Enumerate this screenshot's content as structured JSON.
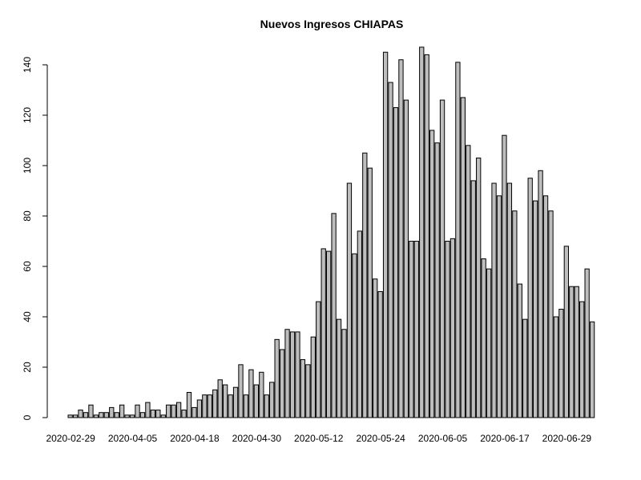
{
  "chart_data": {
    "type": "bar",
    "title": "Nuevos Ingresos CHIAPAS",
    "xlabel": "",
    "ylabel": "",
    "ylim": [
      0,
      150
    ],
    "y_ticks": [
      0,
      20,
      40,
      60,
      80,
      100,
      120,
      140
    ],
    "grid": false,
    "x_tick_labels": [
      {
        "label": "2020-02-29",
        "index": 0
      },
      {
        "label": "2020-04-05",
        "index": 12
      },
      {
        "label": "2020-04-18",
        "index": 24
      },
      {
        "label": "2020-04-30",
        "index": 36
      },
      {
        "label": "2020-05-12",
        "index": 48
      },
      {
        "label": "2020-05-24",
        "index": 60
      },
      {
        "label": "2020-06-05",
        "index": 72
      },
      {
        "label": "2020-06-17",
        "index": 84
      },
      {
        "label": "2020-06-29",
        "index": 96
      }
    ],
    "values": [
      1,
      1,
      3,
      2,
      5,
      1,
      2,
      2,
      4,
      2,
      5,
      1,
      1,
      5,
      2,
      6,
      3,
      3,
      1,
      5,
      5,
      6,
      3,
      10,
      4,
      7,
      9,
      9,
      11,
      15,
      13,
      9,
      12,
      21,
      9,
      19,
      13,
      18,
      9,
      14,
      31,
      27,
      35,
      34,
      34,
      23,
      21,
      32,
      46,
      67,
      66,
      81,
      39,
      35,
      93,
      65,
      74,
      105,
      99,
      55,
      50,
      145,
      133,
      123,
      142,
      126,
      70,
      70,
      147,
      144,
      114,
      109,
      126,
      70,
      71,
      141,
      127,
      108,
      94,
      103,
      63,
      59,
      93,
      88,
      112,
      93,
      82,
      53,
      39,
      95,
      86,
      98,
      88,
      82,
      40,
      43,
      68,
      52,
      52,
      46,
      59,
      38
    ]
  }
}
